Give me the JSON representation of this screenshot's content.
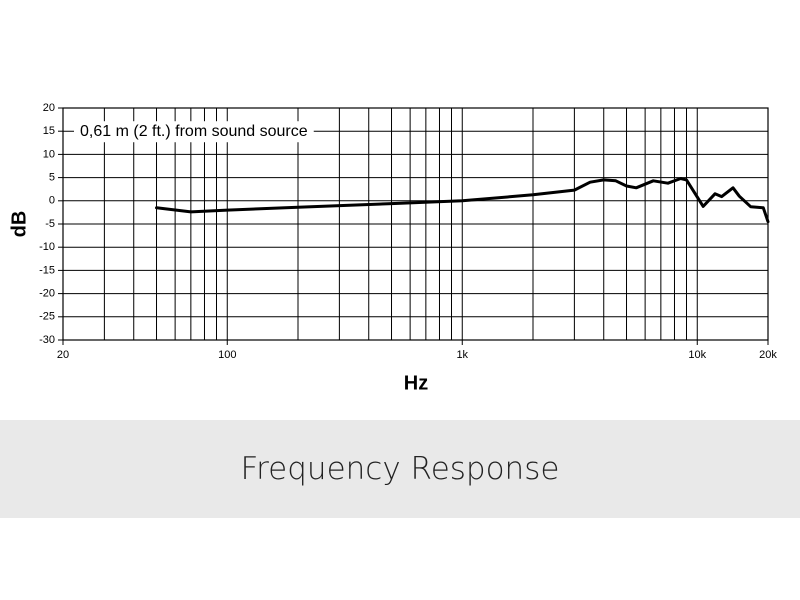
{
  "chart_data": {
    "type": "line",
    "title": "Frequency Response",
    "annotation": "0,61 m (2 ft.) from sound source",
    "xlabel": "Hz",
    "ylabel": "dB",
    "x": [
      50,
      70,
      100,
      200,
      500,
      1000,
      2000,
      3000,
      3500,
      4000,
      4500,
      5000,
      5500,
      6500,
      7500,
      8500,
      9000,
      10600,
      11900,
      12700,
      14200,
      15100,
      16900,
      19100,
      20000
    ],
    "values": [
      -1.5,
      -2.4,
      -2.0,
      -1.4,
      -0.6,
      0,
      1.3,
      2.3,
      4.0,
      4.5,
      4.3,
      3.2,
      2.8,
      4.3,
      3.8,
      4.8,
      4.5,
      -1.2,
      1.5,
      0.9,
      2.8,
      1.0,
      -1.3,
      -1.5,
      -4.5
    ],
    "color": "#000000",
    "xscale": "log",
    "xlim": [
      20,
      20000
    ],
    "ylim": [
      -30,
      20
    ],
    "xticks": [
      20,
      100,
      {
        "value": 1000,
        "label": "1k"
      },
      {
        "value": 10000,
        "label": "10k"
      },
      {
        "value": 20000,
        "label": "20k"
      }
    ],
    "x_minor_ticks": [
      30,
      40,
      50,
      60,
      70,
      80,
      90,
      200,
      300,
      400,
      500,
      600,
      700,
      800,
      900,
      2000,
      3000,
      4000,
      5000,
      6000,
      7000,
      8000,
      9000
    ],
    "yticks": [
      20,
      15,
      10,
      5,
      0,
      -5,
      -10,
      -15,
      -20,
      -25,
      -30
    ],
    "grid": true
  }
}
